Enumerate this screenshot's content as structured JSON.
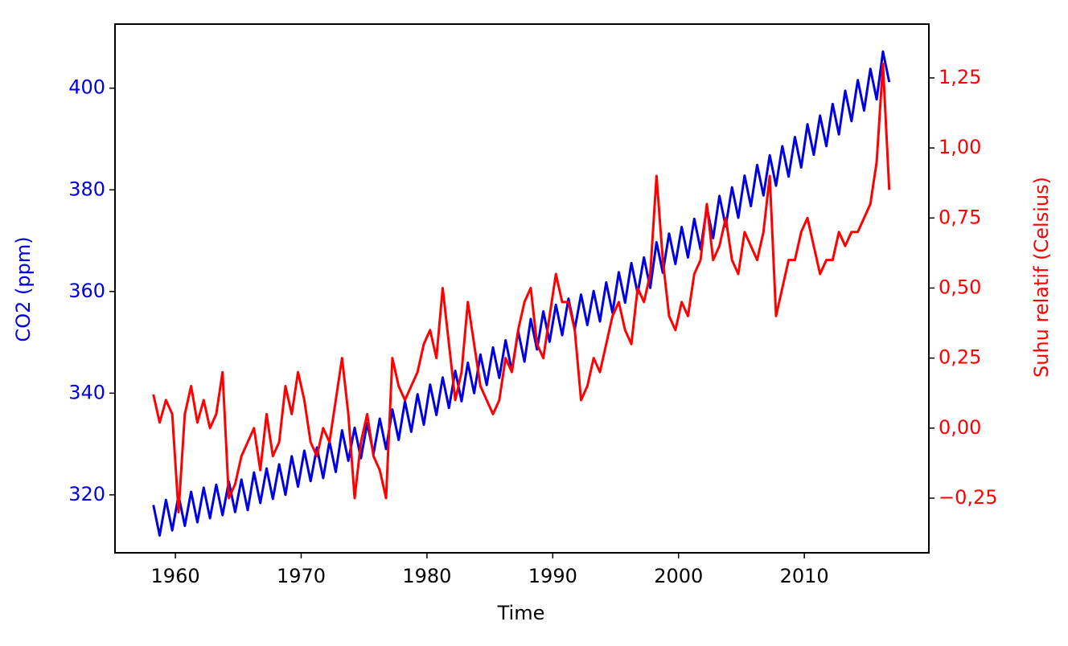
{
  "chart_data": {
    "type": "line",
    "xlabel": "Time",
    "ylabel": "CO2 (ppm)",
    "y2label": "Suhu relatif (Celsius)",
    "x": [
      1958.25,
      1958.75,
      1959.25,
      1959.75,
      1960.25,
      1960.75,
      1961.25,
      1961.75,
      1962.25,
      1962.75,
      1963.25,
      1963.75,
      1964.25,
      1964.75,
      1965.25,
      1965.75,
      1966.25,
      1966.75,
      1967.25,
      1967.75,
      1968.25,
      1968.75,
      1969.25,
      1969.75,
      1970.25,
      1970.75,
      1971.25,
      1971.75,
      1972.25,
      1972.75,
      1973.25,
      1973.75,
      1974.25,
      1974.75,
      1975.25,
      1975.75,
      1976.25,
      1976.75,
      1977.25,
      1977.75,
      1978.25,
      1978.75,
      1979.25,
      1979.75,
      1980.25,
      1980.75,
      1981.25,
      1981.75,
      1982.25,
      1982.75,
      1983.25,
      1983.75,
      1984.25,
      1984.75,
      1985.25,
      1985.75,
      1986.25,
      1986.75,
      1987.25,
      1987.75,
      1988.25,
      1988.75,
      1989.25,
      1989.75,
      1990.25,
      1990.75,
      1991.25,
      1991.75,
      1992.25,
      1992.75,
      1993.25,
      1993.75,
      1994.25,
      1994.75,
      1995.25,
      1995.75,
      1996.25,
      1996.75,
      1997.25,
      1997.75,
      1998.25,
      1998.75,
      1999.25,
      1999.75,
      2000.25,
      2000.75,
      2001.25,
      2001.75,
      2002.25,
      2002.75,
      2003.25,
      2003.75,
      2004.25,
      2004.75,
      2005.25,
      2005.75,
      2006.25,
      2006.75,
      2007.25,
      2007.75,
      2008.25,
      2008.75,
      2009.25,
      2009.75,
      2010.25,
      2010.75,
      2011.25,
      2011.75,
      2012.25,
      2012.75,
      2013.25,
      2013.75,
      2014.25,
      2014.75,
      2015.25,
      2015.75,
      2016.25,
      2016.75
    ],
    "series": [
      {
        "name": "CO2",
        "color": "#0000e0",
        "axis": "y",
        "values": [
          318,
          312,
          319,
          313,
          319.9,
          313.9,
          320.6,
          314.6,
          321.4,
          315.4,
          322,
          316,
          322.6,
          316.6,
          323,
          317,
          324.4,
          318.4,
          325.2,
          319.2,
          326,
          320,
          327.6,
          321.6,
          328.7,
          322.7,
          329.3,
          323.3,
          330.5,
          324.5,
          332.7,
          326.7,
          333.2,
          327.2,
          334.1,
          328.1,
          335,
          329,
          336.8,
          330.8,
          338.4,
          332.4,
          339.8,
          333.8,
          341.7,
          335.7,
          343.1,
          337.1,
          344.4,
          338.4,
          346,
          340,
          347.6,
          341.6,
          349,
          343,
          350.4,
          344.4,
          352.2,
          346.2,
          354.6,
          348.6,
          356.1,
          350.1,
          357.4,
          351.4,
          358.6,
          352.6,
          359.4,
          353.4,
          360.1,
          354.1,
          361.8,
          355.8,
          363.8,
          357.8,
          365.6,
          359.6,
          366.7,
          360.7,
          369.7,
          363.7,
          371.4,
          365.4,
          372.7,
          366.7,
          374.3,
          368.3,
          376.5,
          370.5,
          378.8,
          372.8,
          380.5,
          374.5,
          382.8,
          376.8,
          384.9,
          378.9,
          386.8,
          380.8,
          388.6,
          382.6,
          390.4,
          384.4,
          392.9,
          386.9,
          394.6,
          388.6,
          396.9,
          390.9,
          399.5,
          393.5,
          401.6,
          395.6,
          403.8,
          397.8,
          407.2,
          401.2
        ]
      },
      {
        "name": "Suhu",
        "color": "#ff0000",
        "axis": "y2",
        "values": [
          0.12,
          0.02,
          0.1,
          0.05,
          -0.3,
          0.05,
          0.15,
          0.02,
          0.1,
          0.0,
          0.05,
          0.2,
          -0.25,
          -0.2,
          -0.1,
          -0.05,
          0.0,
          -0.15,
          0.05,
          -0.1,
          -0.05,
          0.15,
          0.05,
          0.2,
          0.1,
          -0.05,
          -0.1,
          0.0,
          -0.05,
          0.1,
          0.25,
          0.05,
          -0.25,
          -0.05,
          0.05,
          -0.1,
          -0.15,
          -0.25,
          0.25,
          0.15,
          0.1,
          0.15,
          0.2,
          0.3,
          0.35,
          0.25,
          0.5,
          0.3,
          0.1,
          0.2,
          0.45,
          0.3,
          0.15,
          0.1,
          0.05,
          0.1,
          0.25,
          0.2,
          0.35,
          0.45,
          0.5,
          0.3,
          0.25,
          0.4,
          0.55,
          0.45,
          0.45,
          0.35,
          0.1,
          0.15,
          0.25,
          0.2,
          0.3,
          0.4,
          0.45,
          0.35,
          0.3,
          0.5,
          0.45,
          0.55,
          0.9,
          0.6,
          0.4,
          0.35,
          0.45,
          0.4,
          0.55,
          0.6,
          0.8,
          0.6,
          0.65,
          0.75,
          0.6,
          0.55,
          0.7,
          0.65,
          0.6,
          0.7,
          0.9,
          0.4,
          0.5,
          0.6,
          0.6,
          0.7,
          0.75,
          0.65,
          0.55,
          0.6,
          0.6,
          0.7,
          0.65,
          0.7,
          0.7,
          0.75,
          0.8,
          0.95,
          1.3,
          0.85
        ]
      }
    ],
    "xlim": [
      1955.2,
      2019.9
    ],
    "xticks": [
      1960,
      1970,
      1980,
      1990,
      2000,
      2010
    ],
    "ylim": [
      308.6,
      412.6
    ],
    "yticks": [
      320,
      340,
      360,
      380,
      400
    ],
    "y2lim": [
      -0.445,
      1.442
    ],
    "y2ticks": [
      {
        "value": -0.25,
        "label": "−0,25"
      },
      {
        "value": 0,
        "label": "0,00"
      },
      {
        "value": 0.25,
        "label": "0,25"
      },
      {
        "value": 0.5,
        "label": "0,50"
      },
      {
        "value": 0.75,
        "label": "0,75"
      },
      {
        "value": 1,
        "label": "1,00"
      },
      {
        "value": 1.25,
        "label": "1,25"
      }
    ]
  }
}
